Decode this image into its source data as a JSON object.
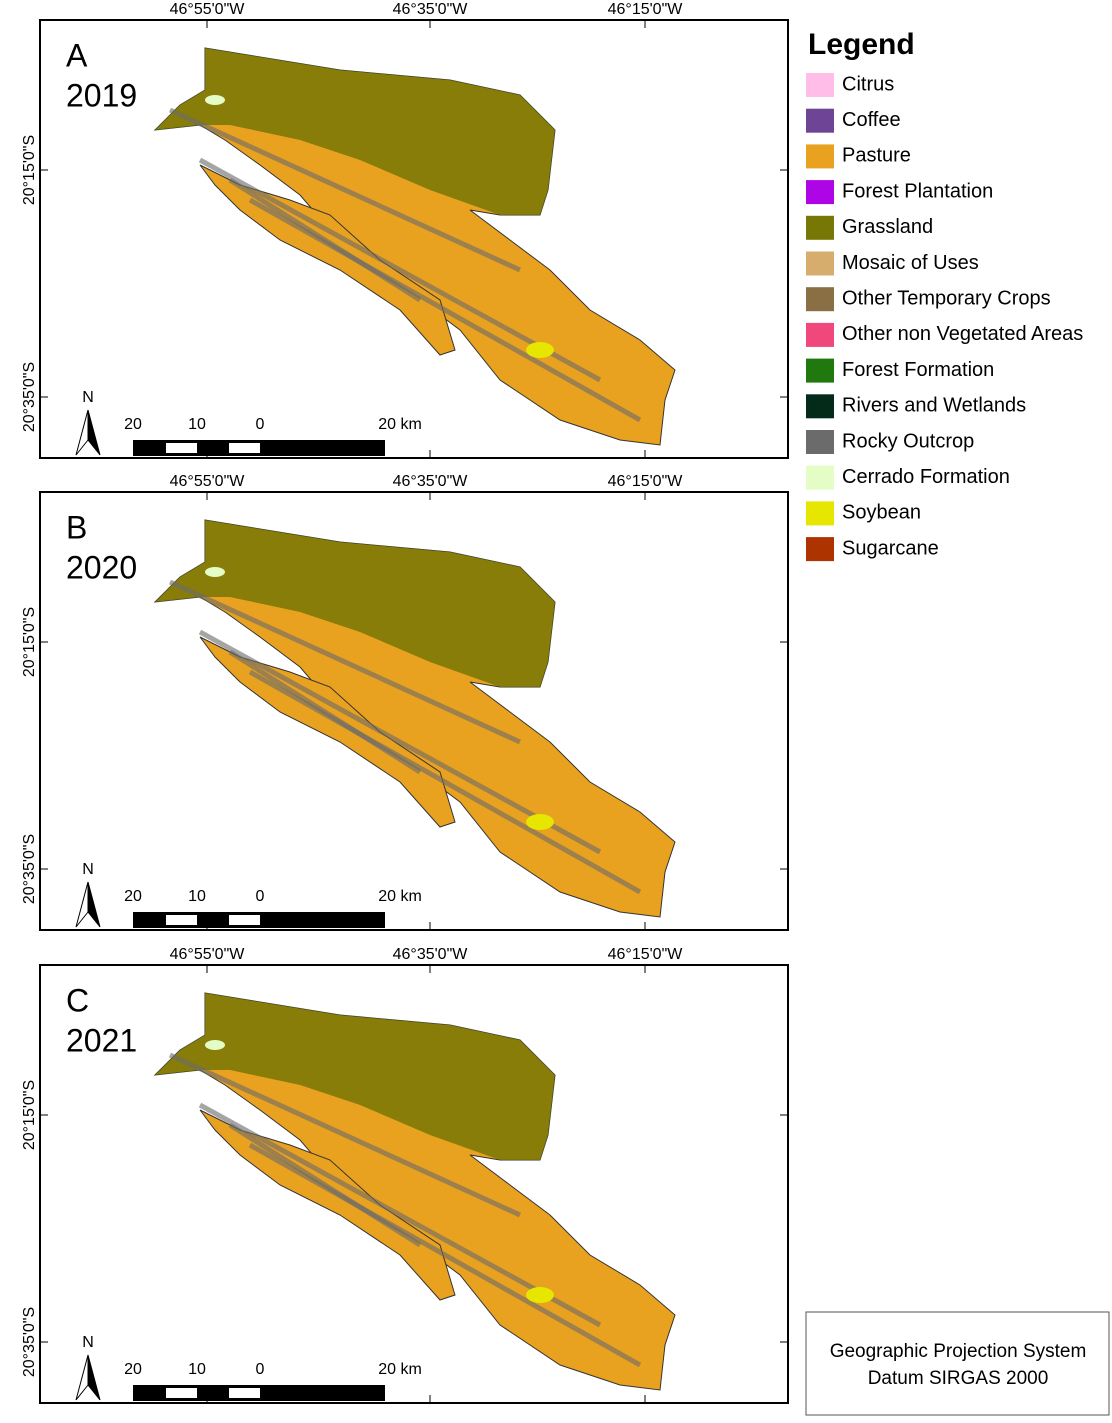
{
  "legend": {
    "title": "Legend",
    "items": [
      {
        "label": "Citrus",
        "color": "#ffbde8"
      },
      {
        "label": "Coffee",
        "color": "#6e4596"
      },
      {
        "label": "Pasture",
        "color": "#e9a21f"
      },
      {
        "label": "Forest Plantation",
        "color": "#ad05e6"
      },
      {
        "label": "Grassland",
        "color": "#777706"
      },
      {
        "label": "Mosaic of Uses",
        "color": "#d6ad6c"
      },
      {
        "label": "Other Temporary Crops",
        "color": "#8a6e44"
      },
      {
        "label": "Other non Vegetated Areas",
        "color": "#f0477c"
      },
      {
        "label": "Forest Formation",
        "color": "#21780f"
      },
      {
        "label": "Rivers and Wetlands",
        "color": "#042b1a"
      },
      {
        "label": "Rocky Outcrop",
        "color": "#6b6b6b"
      },
      {
        "label": "Cerrado Formation",
        "color": "#e4fcc6"
      },
      {
        "label": "Soybean",
        "color": "#e6e600"
      },
      {
        "label": "Sugarcane",
        "color": "#ad3300"
      }
    ]
  },
  "panels": [
    {
      "letter": "A",
      "year": "2019",
      "lon_labels": [
        "46°55'0\"W",
        "46°35'0\"W",
        "46°15'0\"W"
      ],
      "lat_labels": [
        "20°15'0\"S",
        "20°35'0\"S"
      ],
      "north": "N",
      "scale_labels": [
        "20",
        "10",
        "0",
        "20 km"
      ]
    },
    {
      "letter": "B",
      "year": "2020",
      "lon_labels": [
        "46°55'0\"W",
        "46°35'0\"W",
        "46°15'0\"W"
      ],
      "lat_labels": [
        "20°15'0\"S",
        "20°35'0\"S"
      ],
      "north": "N",
      "scale_labels": [
        "20",
        "10",
        "0",
        "20 km"
      ]
    },
    {
      "letter": "C",
      "year": "2021",
      "lon_labels": [
        "46°55'0\"W",
        "46°35'0\"W",
        "46°15'0\"W"
      ],
      "lat_labels": [
        "20°15'0\"S",
        "20°35'0\"S"
      ],
      "north": "N",
      "scale_labels": [
        "20",
        "10",
        "0",
        "20 km"
      ]
    }
  ],
  "projection": {
    "line1": "Geographic Projection System",
    "line2": "Datum SIRGAS 2000"
  }
}
